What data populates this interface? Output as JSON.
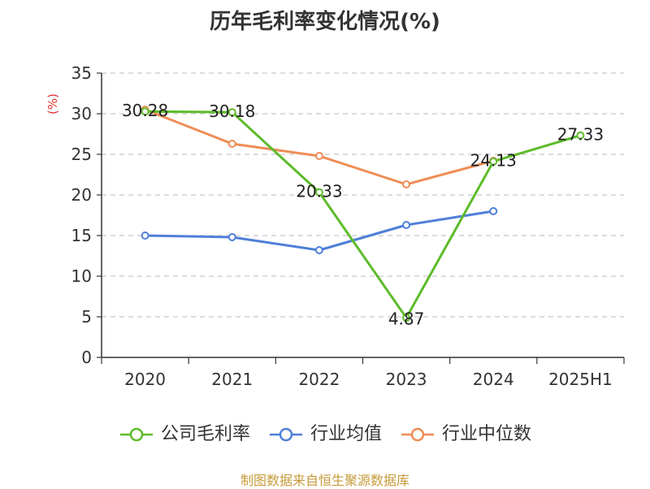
{
  "title": "历年毛利率变化情况(%)",
  "source": "制图数据来自恒生聚源数据库",
  "legend": [
    {
      "label": "公司毛利率",
      "color": "#5dbb2a"
    },
    {
      "label": "行业均值",
      "color": "#4f7fd8"
    },
    {
      "label": "行业中位数",
      "color": "#f08c55"
    }
  ],
  "chart_data": {
    "type": "line",
    "title": "历年毛利率变化情况(%)",
    "ylabel": "(%)",
    "ylim": [
      0,
      35
    ],
    "yticks": [
      "0",
      "5",
      "10",
      "15",
      "20",
      "25",
      "30",
      "35"
    ],
    "categories": [
      "2020",
      "2021",
      "2022",
      "2023",
      "2024",
      "2025H1"
    ],
    "grid": true,
    "legend_position": "bottom",
    "series": [
      {
        "name": "公司毛利率",
        "color": "#5dbb2a",
        "values": [
          30.28,
          30.18,
          20.33,
          4.87,
          24.13,
          27.33
        ],
        "labels": [
          "30.28",
          "30.18",
          "20.33",
          "4.87",
          "24.13",
          "27.33"
        ]
      },
      {
        "name": "行业均值",
        "color": "#4f7fd8",
        "values": [
          15.0,
          14.8,
          13.2,
          16.3,
          18.0,
          null
        ],
        "labels": []
      },
      {
        "name": "行业中位数",
        "color": "#f08c55",
        "values": [
          30.5,
          26.3,
          24.8,
          21.3,
          24.2,
          null
        ],
        "labels": []
      }
    ]
  }
}
